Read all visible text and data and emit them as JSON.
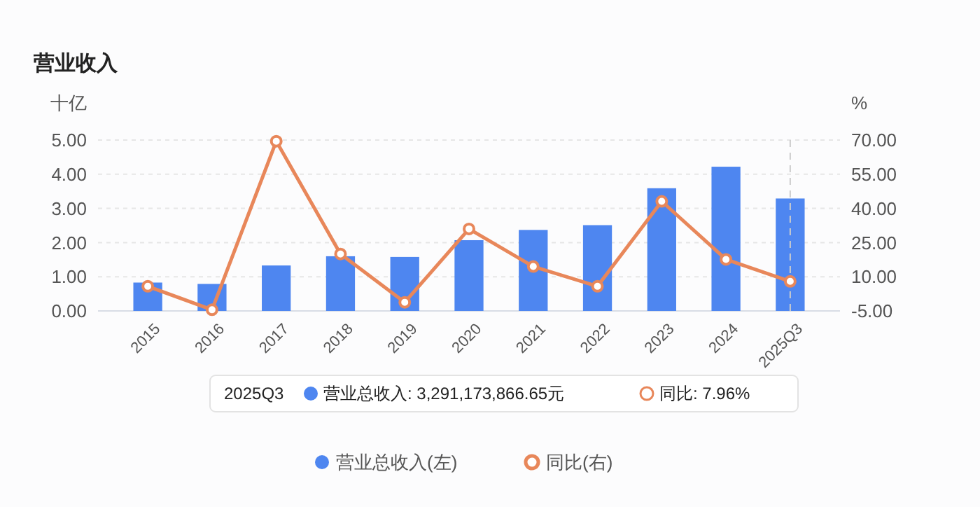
{
  "chart_data": {
    "type": "bar",
    "title": "营业收入",
    "ylabel": "十亿",
    "y2label": "%",
    "categories": [
      "2015",
      "2016",
      "2017",
      "2018",
      "2019",
      "2020",
      "2021",
      "2022",
      "2023",
      "2024",
      "2025Q3"
    ],
    "series": [
      {
        "name": "营业总收入(左)",
        "color": "#4e86f0",
        "values": [
          0.83,
          0.79,
          1.33,
          1.6,
          1.58,
          2.07,
          2.37,
          2.51,
          3.59,
          4.22,
          3.29
        ]
      },
      {
        "name": "同比(右)",
        "type": "line",
        "axis": "y2",
        "color": "#e8875a",
        "marker": "circle",
        "values": [
          5.8,
          -4.5,
          69.5,
          20.0,
          -1.2,
          31.0,
          14.5,
          5.8,
          43.1,
          17.6,
          7.96
        ]
      }
    ],
    "ylim": [
      0,
      5
    ],
    "yticks": [
      {
        "value": 0,
        "label": "0.00"
      },
      {
        "value": 1,
        "label": "1.00"
      },
      {
        "value": 2,
        "label": "2.00"
      },
      {
        "value": 3,
        "label": "3.00"
      },
      {
        "value": 4,
        "label": "4.00"
      },
      {
        "value": 5,
        "label": "5.00"
      }
    ],
    "y2lim": [
      -5,
      70
    ],
    "y2ticks": [
      {
        "value": -5,
        "label": "-5.00"
      },
      {
        "value": 10,
        "label": "10.00"
      },
      {
        "value": 25,
        "label": "25.00"
      },
      {
        "value": 40,
        "label": "40.00"
      },
      {
        "value": 55,
        "label": "55.00"
      },
      {
        "value": 70,
        "label": "70.00"
      }
    ],
    "grid": "y",
    "legend": "bottom",
    "ref_lines": [
      {
        "axis": "x",
        "value": "2025Q3",
        "color": "#cccccc",
        "line_style": "dashed"
      }
    ],
    "annotations": [
      "2025Q3",
      "营业总收入: 3,291,173,866.65元",
      "同比: 7.96%"
    ]
  }
}
